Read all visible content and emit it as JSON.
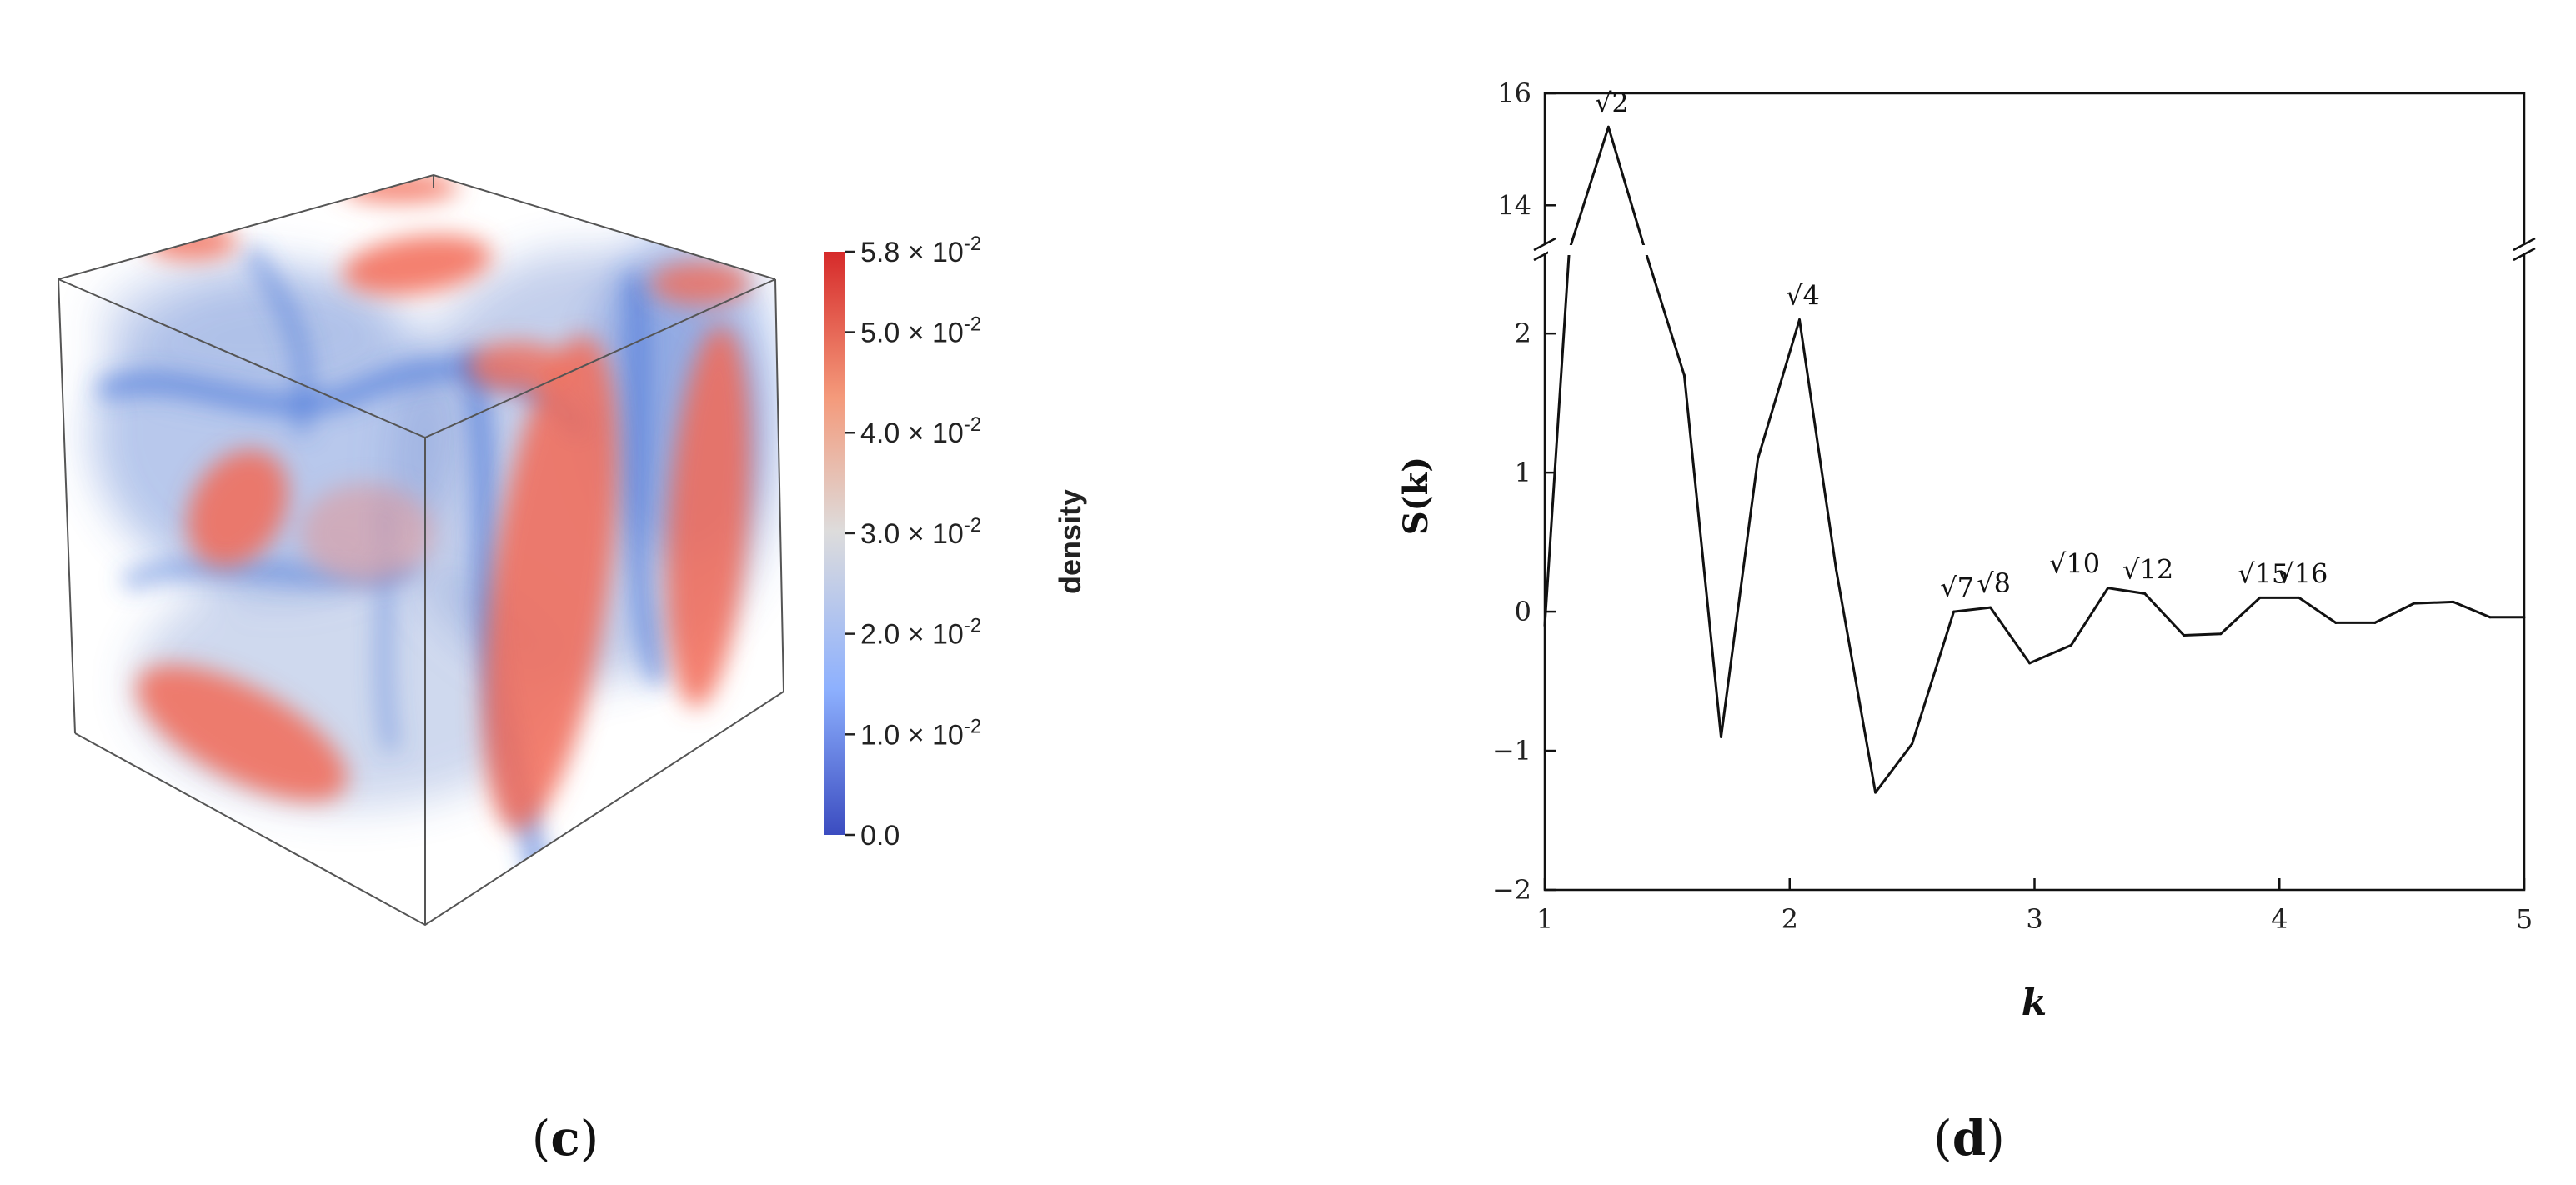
{
  "panels": {
    "c": {
      "label_open": "(",
      "label_letter": "c",
      "label_close": ")"
    },
    "d": {
      "label_open": "(",
      "label_letter": "d",
      "label_close": ")"
    }
  },
  "colorbar": {
    "title": "density",
    "ticks": [
      {
        "value": 0.058,
        "label": "5.8 × 10",
        "exp": "-2"
      },
      {
        "value": 0.05,
        "label": "5.0 × 10",
        "exp": "-2"
      },
      {
        "value": 0.04,
        "label": "4.0 × 10",
        "exp": "-2"
      },
      {
        "value": 0.03,
        "label": "3.0 × 10",
        "exp": "-2"
      },
      {
        "value": 0.02,
        "label": "2.0 × 10",
        "exp": "-2"
      },
      {
        "value": 0.01,
        "label": "1.0 × 10",
        "exp": "-2"
      },
      {
        "value": 0.0,
        "label": "0.0",
        "exp": ""
      }
    ],
    "colors": [
      "#3b4cc0",
      "#8db0fe",
      "#dddcdc",
      "#f49a7b",
      "#d62a2a"
    ]
  },
  "volume_colors": {
    "high": "#f26a55",
    "mid": "#c9a7b8",
    "low": "#5d84d9"
  },
  "chart_data": {
    "type": "line",
    "xlabel": "k",
    "ylabel": "S(k)",
    "xlim": [
      1,
      5
    ],
    "ylim_lower": [
      -2,
      2.6
    ],
    "ylim_upper": [
      13.2,
      16
    ],
    "x_ticks": [
      1,
      2,
      3,
      4,
      5
    ],
    "y_ticks_lower": [
      -2,
      -1,
      0,
      1,
      2
    ],
    "y_ticks_upper": [
      14,
      16
    ],
    "axis_break_y": 2.6,
    "series": [
      {
        "x": [
          1.0,
          1.1,
          1.26,
          1.41,
          1.57,
          1.72,
          1.87,
          2.04,
          2.19,
          2.35,
          2.5,
          2.67,
          2.82,
          2.98,
          3.15,
          3.3,
          3.45,
          3.61,
          3.76,
          3.92,
          4.08,
          4.23,
          4.39,
          4.55,
          4.71,
          4.86,
          5.0
        ],
        "y": [
          -0.1,
          2.6,
          15.4,
          2.6,
          1.7,
          -0.9,
          1.1,
          2.1,
          0.3,
          -1.3,
          -0.95,
          0.0,
          0.03,
          -0.37,
          -0.24,
          0.17,
          0.13,
          -0.17,
          -0.16,
          0.1,
          0.1,
          -0.08,
          -0.08,
          0.06,
          0.07,
          -0.04,
          -0.04
        ]
      }
    ],
    "annotations": [
      {
        "text": "√2",
        "x": 1.26,
        "y": 15.4
      },
      {
        "text": "√4",
        "x": 2.04,
        "y": 2.1
      },
      {
        "text": "√7",
        "x": 2.67,
        "y": 0.0
      },
      {
        "text": "√8",
        "x": 2.82,
        "y": 0.03
      },
      {
        "text": "√10",
        "x": 3.15,
        "y": 0.17
      },
      {
        "text": "√12",
        "x": 3.45,
        "y": 0.13
      },
      {
        "text": "√15",
        "x": 3.92,
        "y": 0.1
      },
      {
        "text": "√16",
        "x": 4.08,
        "y": 0.1
      }
    ]
  }
}
